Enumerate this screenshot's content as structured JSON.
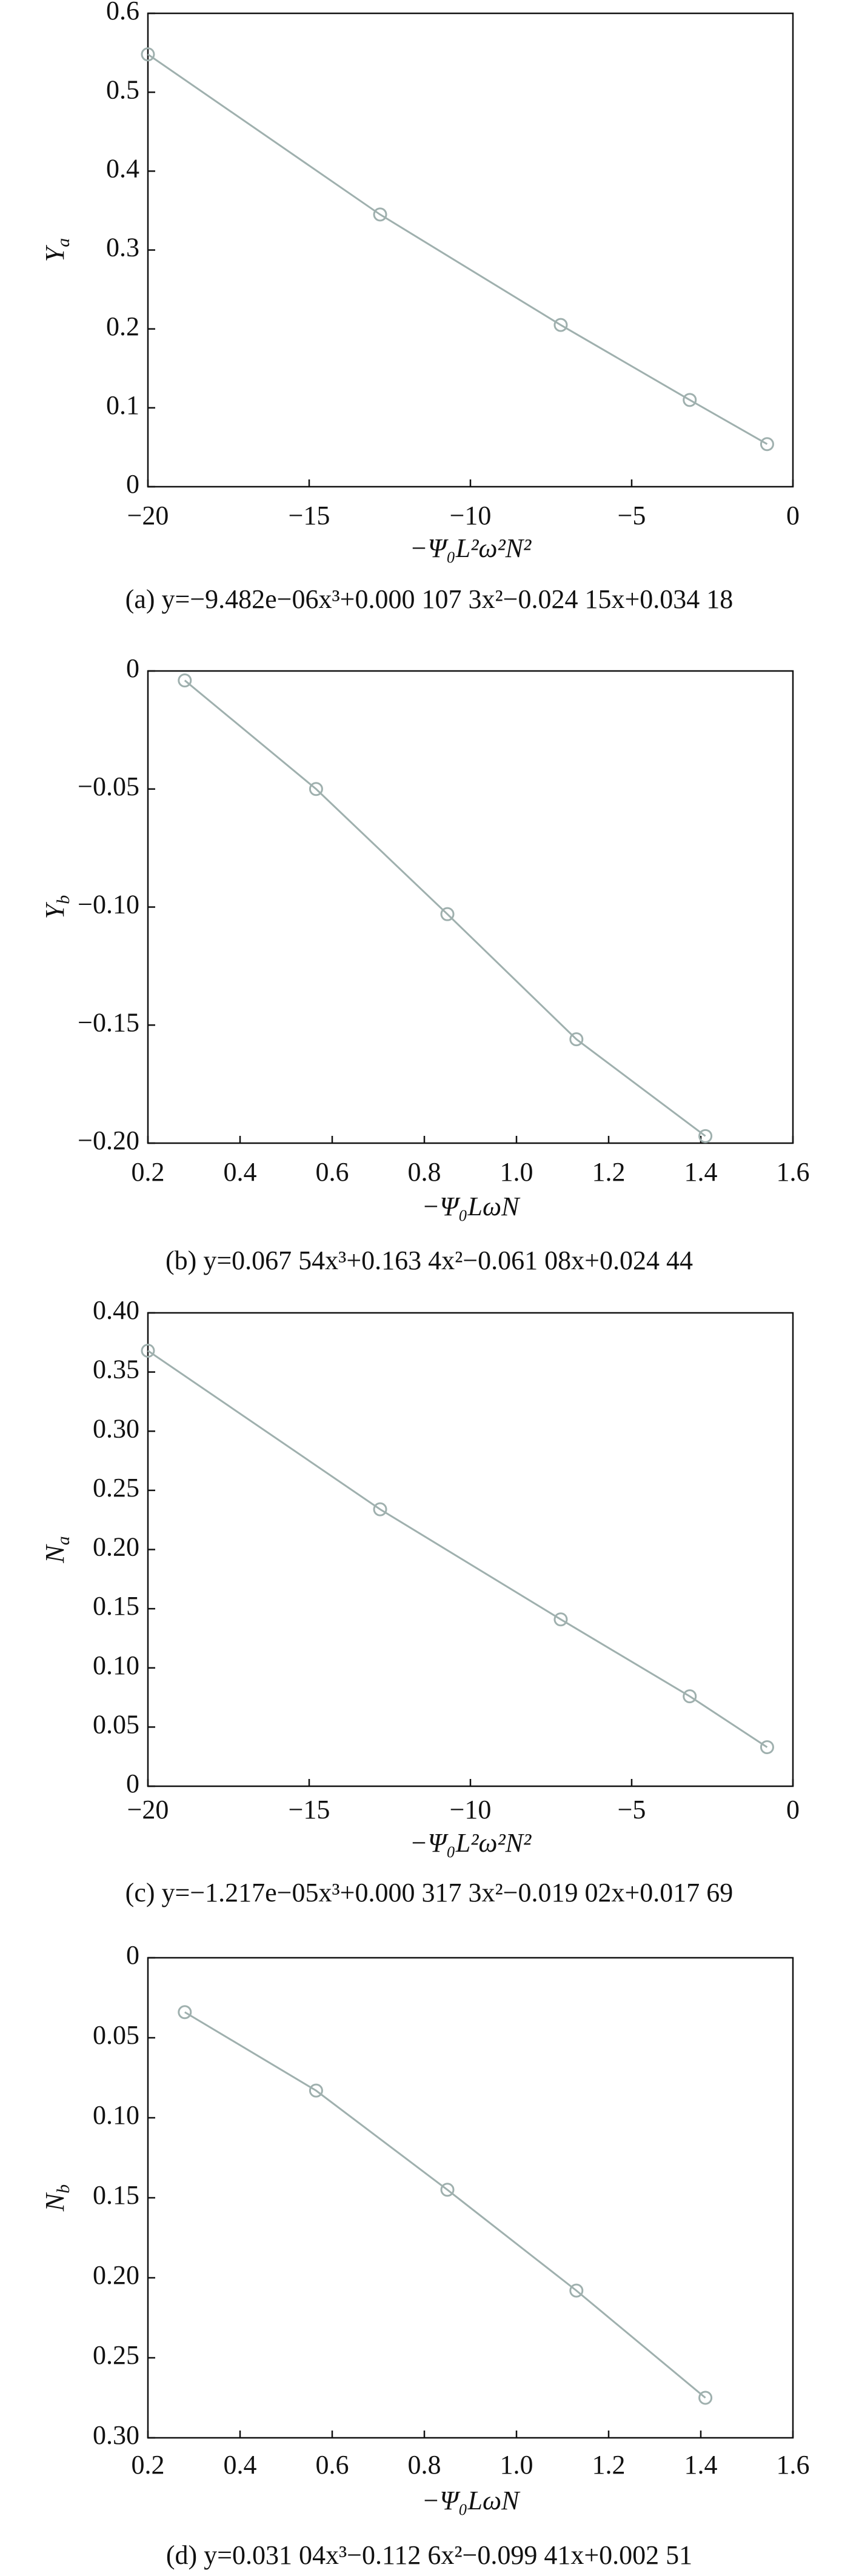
{
  "chart_data": [
    {
      "type": "line",
      "x": [
        -20,
        -12.8,
        -7.2,
        -3.2,
        -0.8
      ],
      "values": [
        0.548,
        0.345,
        0.205,
        0.11,
        0.054
      ],
      "color": "#9fb0ae",
      "xlim": [
        -20,
        0
      ],
      "xticks": [
        {
          "value": -20,
          "label": "−20"
        },
        {
          "value": -15,
          "label": "−15"
        },
        {
          "value": -10,
          "label": "−10"
        },
        {
          "value": -5,
          "label": "−5"
        },
        0
      ],
      "ylim": [
        0,
        0.6
      ],
      "yticks": [
        0,
        0.1,
        0.2,
        0.3,
        0.4,
        0.5,
        0.6
      ],
      "xlabel": "−Ψ₀L²ω²N²",
      "ylabel": [
        "Y",
        "a"
      ],
      "caption": "(a) y=−9.482e−06x³+0.000 107 3x²−0.024 15x+0.034 18"
    },
    {
      "type": "line",
      "x": [
        0.28,
        0.565,
        0.85,
        1.13,
        1.41
      ],
      "values": [
        -0.004,
        -0.05,
        -0.103,
        -0.156,
        -0.197
      ],
      "color": "#9fb0ae",
      "xlim": [
        0.2,
        1.6
      ],
      "xticks": [
        0.2,
        0.4,
        0.6,
        0.8,
        {
          "value": 1,
          "label": "1.0"
        },
        1.2,
        1.4,
        1.6
      ],
      "ylim": [
        -0.2,
        0
      ],
      "yticks": [
        {
          "value": -0.2,
          "label": "−0.20"
        },
        {
          "value": -0.15,
          "label": "−0.15"
        },
        {
          "value": -0.1,
          "label": "−0.10"
        },
        {
          "value": -0.05,
          "label": "−0.05"
        },
        0
      ],
      "xlabel": "−Ψ₀LωN",
      "ylabel": [
        "Y",
        "b"
      ],
      "caption": "(b) y=0.067 54x³+0.163 4x²−0.061 08x+0.024 44"
    },
    {
      "type": "line",
      "x": [
        -20,
        -12.8,
        -7.2,
        -3.2,
        -0.8
      ],
      "values": [
        0.368,
        0.234,
        0.141,
        0.076,
        0.033
      ],
      "color": "#9fb0ae",
      "xlim": [
        -20,
        0
      ],
      "xticks": [
        {
          "value": -20,
          "label": "−20"
        },
        {
          "value": -15,
          "label": "−15"
        },
        {
          "value": -10,
          "label": "−10"
        },
        {
          "value": -5,
          "label": "−5"
        },
        0
      ],
      "ylim": [
        0,
        0.4
      ],
      "yticks": [
        0,
        0.05,
        {
          "value": 0.1,
          "label": "0.10"
        },
        0.15,
        {
          "value": 0.2,
          "label": "0.20"
        },
        0.25,
        {
          "value": 0.3,
          "label": "0.30"
        },
        0.35,
        {
          "value": 0.4,
          "label": "0.40"
        }
      ],
      "xlabel": "−Ψ₀L²ω²N²",
      "ylabel": [
        "N",
        "a"
      ],
      "caption": "(c) y=−1.217e−05x³+0.000 317 3x²−0.019  02x+0.017 69"
    },
    {
      "type": "line",
      "x": [
        0.28,
        0.565,
        0.85,
        1.13,
        1.41
      ],
      "values": [
        0.034,
        0.083,
        0.145,
        0.208,
        0.275
      ],
      "color": "#9fb0ae",
      "xlim": [
        0.2,
        1.6
      ],
      "xticks": [
        0.2,
        0.4,
        0.6,
        0.8,
        {
          "value": 1,
          "label": "1.0"
        },
        1.2,
        1.4,
        1.6
      ],
      "ylim": [
        0,
        0.3
      ],
      "y_inverted": true,
      "yticks": [
        0,
        0.05,
        {
          "value": 0.1,
          "label": "0.10"
        },
        0.15,
        {
          "value": 0.2,
          "label": "0.20"
        },
        0.25,
        {
          "value": 0.3,
          "label": "0.30"
        }
      ],
      "xlabel": "−Ψ₀LωN",
      "ylabel": [
        "N",
        "b"
      ],
      "caption": "(d) y=0.031 04x³−0.112 6x²−0.099 41x+0.002 51"
    }
  ]
}
